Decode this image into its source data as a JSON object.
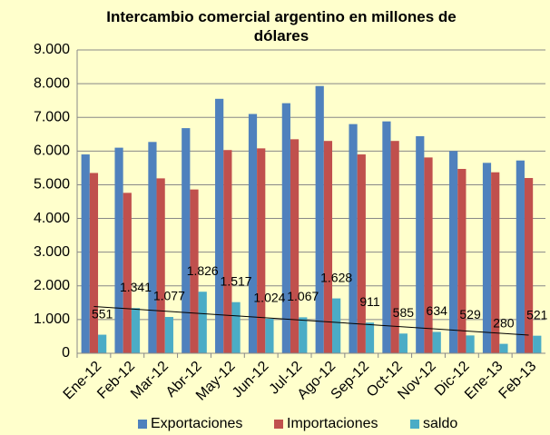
{
  "chart_data": {
    "type": "bar",
    "title": "Intercambio comercial argentino en millones de dólares",
    "categories": [
      "Ene-12",
      "Feb-12",
      "Mar-12",
      "Abr-12",
      "May-12",
      "Jun-12",
      "Jul-12",
      "Ago-12",
      "Sep-12",
      "Oct-12",
      "Nov-12",
      "Dic-12",
      "Ene-13",
      "Feb-13"
    ],
    "series": [
      {
        "name": "Exportaciones",
        "color": "#4f81bd",
        "values": [
          5900,
          6100,
          6270,
          6680,
          7550,
          7100,
          7420,
          7930,
          6800,
          6880,
          6440,
          6000,
          5650,
          5720
        ]
      },
      {
        "name": "Importaciones",
        "color": "#c0504d",
        "values": [
          5350,
          4760,
          5190,
          4860,
          6030,
          6080,
          6350,
          6300,
          5900,
          6300,
          5810,
          5470,
          5370,
          5200
        ]
      },
      {
        "name": "saldo",
        "color": "#4bacc6",
        "values": [
          551,
          1341,
          1077,
          1826,
          1517,
          1024,
          1067,
          1628,
          911,
          585,
          634,
          529,
          280,
          521
        ],
        "value_labels": [
          "551",
          "1.341",
          "1.077",
          "1.826",
          "1.517",
          "1.024",
          "1.067",
          "1.628",
          "911",
          "585",
          "634",
          "529",
          "280",
          "521"
        ],
        "trendline": true
      }
    ],
    "ylim": [
      0,
      9000
    ],
    "yticks": [
      0,
      {
        "value": 1000,
        "label": "1.000"
      },
      {
        "value": 2000,
        "label": "2.000"
      },
      {
        "value": 3000,
        "label": "3.000"
      },
      {
        "value": 4000,
        "label": "4.000"
      },
      {
        "value": 5000,
        "label": "5.000"
      },
      {
        "value": 6000,
        "label": "6.000"
      },
      {
        "value": 7000,
        "label": "7.000"
      },
      {
        "value": 8000,
        "label": "8.000"
      },
      {
        "value": 9000,
        "label": "9.000"
      }
    ],
    "grid": true,
    "legend": "bottom",
    "background": "#ffffcc"
  }
}
